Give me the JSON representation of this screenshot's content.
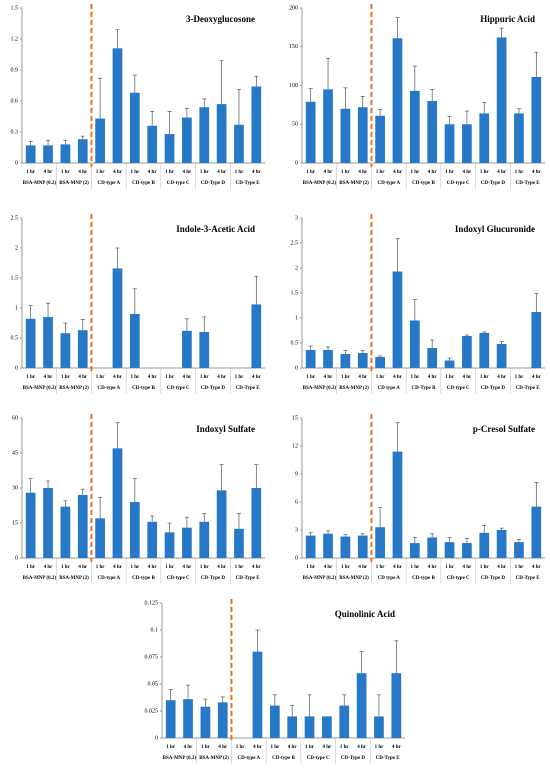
{
  "chart_data": [
    {
      "type": "bar",
      "title": "3-Deoxyglucosone",
      "color": "#2878c8",
      "categories": [
        "1 hr",
        "4 hr",
        "1 hr",
        "4 hr",
        "1 hr",
        "4 hr",
        "1 hr",
        "4 hr",
        "1 hr",
        "4 hr",
        "1 hr",
        "4 hr",
        "1 hr",
        "4 hr"
      ],
      "groups": [
        "BSA-MNP (0.2)",
        "BSA-MNP (2)",
        "CD-type A",
        "CD-type B",
        "CD-type C",
        "CD-Type D",
        "CD-Type E"
      ],
      "values": [
        0.17,
        0.17,
        0.18,
        0.23,
        0.43,
        1.11,
        0.68,
        0.36,
        0.28,
        0.44,
        0.54,
        0.57,
        0.37,
        0.74
      ],
      "errors": [
        0.04,
        0.05,
        0.04,
        0.03,
        0.39,
        0.18,
        0.17,
        0.14,
        0.22,
        0.09,
        0.08,
        0.42,
        0.34,
        0.1
      ],
      "ylim": [
        0,
        1.5
      ],
      "yticks": [
        0,
        0.3,
        0.6,
        0.9,
        1.2,
        1.5
      ]
    },
    {
      "type": "bar",
      "title": "Hippuric Acid",
      "color": "#2878c8",
      "categories": [
        "1 hr",
        "4 hr",
        "1 hr",
        "4 hr",
        "1 hr",
        "4 hr",
        "1 hr",
        "4 hr",
        "1 hr",
        "4 hr",
        "1 hr",
        "4 hr",
        "1 hr",
        "4 hr"
      ],
      "groups": [
        "BSA-MNP (0.2)",
        "BSA-MNP (2)",
        "CD-type A",
        "CD-type B",
        "CD-type C",
        "CD-Type D",
        "CD-Type E"
      ],
      "values": [
        79,
        95,
        70,
        72,
        61,
        161,
        93,
        80,
        50,
        50,
        64,
        162,
        64,
        111
      ],
      "errors": [
        17,
        40,
        27,
        14,
        8,
        27,
        32,
        15,
        10,
        17,
        14,
        12,
        6,
        32
      ],
      "ylim": [
        0,
        200
      ],
      "yticks": [
        0,
        50,
        100,
        150,
        200
      ]
    },
    {
      "type": "bar",
      "title": "Indole-3-Acetic Acid",
      "color": "#2878c8",
      "categories": [
        "1 hr",
        "4 hr",
        "1 hr",
        "4 hr",
        "1 hr",
        "4 hr",
        "1 hr",
        "4 hr",
        "1 hr",
        "4 hr",
        "1 hr",
        "4 hr",
        "1 hr",
        "4 hr"
      ],
      "groups": [
        "BSA-MNP (0.2)",
        "BSA-MNP (2)",
        "CD-type A",
        "CD-type B",
        "CD-type C",
        "CD-Type D",
        "CD-Type E"
      ],
      "values": [
        0.82,
        0.85,
        0.58,
        0.63,
        null,
        1.66,
        0.9,
        null,
        null,
        0.62,
        0.6,
        null,
        null,
        1.06
      ],
      "errors": [
        0.22,
        0.23,
        0.17,
        0.18,
        null,
        0.34,
        0.42,
        null,
        null,
        0.2,
        0.25,
        null,
        null,
        0.47
      ],
      "ylim": [
        0,
        2.5
      ],
      "yticks": [
        0,
        0.5,
        1,
        1.5,
        2,
        2.5
      ]
    },
    {
      "type": "bar",
      "title": "Indoxyl Glucuronide",
      "color": "#2878c8",
      "categories": [
        "1 hr",
        "4 hr",
        "1 hr",
        "4 hr",
        "1 hr",
        "4 hr",
        "1 hr",
        "4 hr",
        "1 hr",
        "4 hr",
        "1 hr",
        "4 hr",
        "1 hr",
        "4 hr"
      ],
      "groups": [
        "BSA-MNP (0.2)",
        "BSA-MNP (2)",
        "CD type A",
        "CD-Type B",
        "CD-type C",
        "CD-Type D",
        "CD-Type E"
      ],
      "values": [
        0.36,
        0.36,
        0.28,
        0.3,
        0.22,
        1.93,
        0.95,
        0.4,
        0.15,
        0.64,
        0.7,
        0.48,
        null,
        1.12
      ],
      "errors": [
        0.08,
        0.06,
        0.07,
        0.05,
        0.02,
        0.66,
        0.42,
        0.16,
        0.05,
        0.02,
        0.02,
        0.05,
        null,
        0.37
      ],
      "ylim": [
        0,
        3
      ],
      "yticks": [
        0,
        0.5,
        1,
        1.5,
        2,
        2.5,
        3
      ]
    },
    {
      "type": "bar",
      "title": "Indoxyl Sulfate",
      "color": "#2878c8",
      "categories": [
        "1 hr",
        "4 hr",
        "1 hr",
        "4 hr",
        "1 hr",
        "4 hr",
        "1 hr",
        "4 hr",
        "1 hr",
        "4 hr",
        "1 hr",
        "4 hr",
        "1 hr",
        "4 hr"
      ],
      "groups": [
        "BSA-MNP (0.2)",
        "BSA-MNP (2)",
        "CD-type A",
        "CD-type B",
        "CD-type C",
        "CD-Type D",
        "CD-Type E"
      ],
      "values": [
        28,
        30,
        22,
        27,
        17,
        47,
        24,
        15.5,
        11,
        13,
        15.5,
        29,
        12.5,
        30
      ],
      "errors": [
        6,
        3,
        2.5,
        2.5,
        9,
        11,
        10,
        2.5,
        4,
        4.5,
        3.5,
        11,
        6.5,
        10
      ],
      "ylim": [
        0,
        60
      ],
      "yticks": [
        0,
        15,
        30,
        45,
        60
      ]
    },
    {
      "type": "bar",
      "title": "p-Cresol Sulfate",
      "color": "#2878c8",
      "categories": [
        "1 hr",
        "4 hr",
        "1 hr",
        "4 hr",
        "1 hr",
        "4 hr",
        "1 hr",
        "4 hr",
        "1 hr",
        "4 hr",
        "1 hr",
        "4 hr",
        "1 hr",
        "4 hr"
      ],
      "groups": [
        "BSA-MNP (0.2)",
        "BSA-MNP (2)",
        "CD type A",
        "CD-type B",
        "CD-type C",
        "CD-Type D",
        "CD-Type E"
      ],
      "values": [
        2.4,
        2.6,
        2.3,
        2.4,
        3.3,
        11.4,
        1.6,
        2.2,
        1.7,
        1.6,
        2.7,
        3.0,
        1.7,
        5.5
      ],
      "errors": [
        0.3,
        0.3,
        0.2,
        0.2,
        2.1,
        3.1,
        0.6,
        0.4,
        0.5,
        0.5,
        0.8,
        0.2,
        0.3,
        2.6
      ],
      "ylim": [
        0,
        15
      ],
      "yticks": [
        0,
        3,
        6,
        9,
        12,
        15
      ]
    },
    {
      "type": "bar",
      "title": "Quinolinic Acid",
      "color": "#2878c8",
      "categories": [
        "1 hr",
        "4 hr",
        "1 hr",
        "4 hr",
        "1 hr",
        "4 hr",
        "1 hr",
        "4 hr",
        "1 hr",
        "4 hr",
        "1 hr",
        "4 hr",
        "1 hr",
        "4 hr"
      ],
      "groups": [
        "BSA-MNP (0.2)",
        "BSA-MNP (2)",
        "CD-type A",
        "CD-type B",
        "CD-type C",
        "CD-Type D",
        "CD-Type E"
      ],
      "values": [
        0.035,
        0.036,
        0.029,
        0.033,
        null,
        0.08,
        0.03,
        0.02,
        0.02,
        0.02,
        0.03,
        0.06,
        0.02,
        0.06
      ],
      "errors": [
        0.01,
        0.013,
        0.007,
        0.005,
        null,
        0.02,
        0.01,
        0.01,
        0.02,
        null,
        0.01,
        0.02,
        0.02,
        0.03
      ],
      "ylim": [
        0,
        0.125
      ],
      "yticks": [
        0,
        0.025,
        0.05,
        0.075,
        0.1,
        0.125
      ]
    }
  ]
}
